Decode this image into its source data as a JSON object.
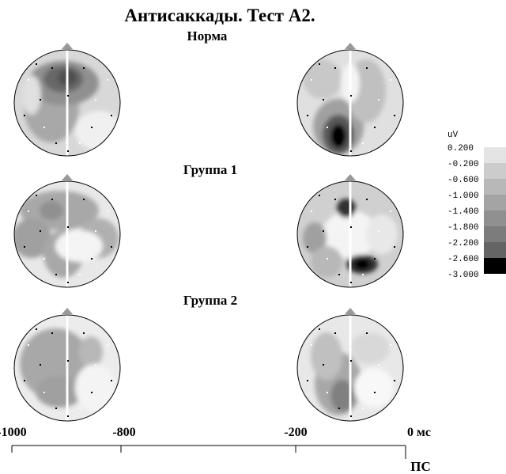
{
  "title": "Антисаккады. Тест А2.",
  "groups": [
    "Норма",
    "Группа 1",
    "Группа 2"
  ],
  "scale": {
    "unit": "uV",
    "labels": [
      "0.200",
      "-0.200",
      "-0.600",
      "-1.000",
      "-1.400",
      "-1.800",
      "-2.200",
      "-2.600",
      "-3.000"
    ]
  },
  "time_axis": {
    "labels": [
      "-1000",
      "-800",
      "-200",
      "0 мс"
    ],
    "marker": "ПС"
  }
}
